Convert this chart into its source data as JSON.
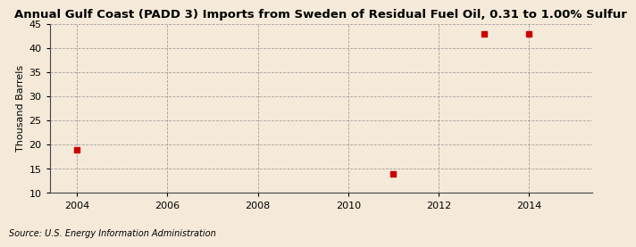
{
  "title": "Annual Gulf Coast (PADD 3) Imports from Sweden of Residual Fuel Oil, 0.31 to 1.00% Sulfur",
  "ylabel": "Thousand Barrels",
  "source": "Source: U.S. Energy Information Administration",
  "x_data": [
    2004,
    2011,
    2013,
    2014
  ],
  "y_data": [
    19,
    14,
    43,
    43
  ],
  "xlim": [
    2003.4,
    2015.4
  ],
  "ylim": [
    10,
    45
  ],
  "yticks": [
    10,
    15,
    20,
    25,
    30,
    35,
    40,
    45
  ],
  "xticks": [
    2004,
    2006,
    2008,
    2010,
    2012,
    2014
  ],
  "marker_color": "#cc0000",
  "marker": "s",
  "marker_size": 4,
  "bg_color": "#f5ead9",
  "plot_bg_color": "#f5ead9",
  "grid_color": "#999999",
  "title_fontsize": 9.5,
  "title_fontweight": "bold",
  "label_fontsize": 8,
  "tick_fontsize": 8,
  "source_fontsize": 7
}
